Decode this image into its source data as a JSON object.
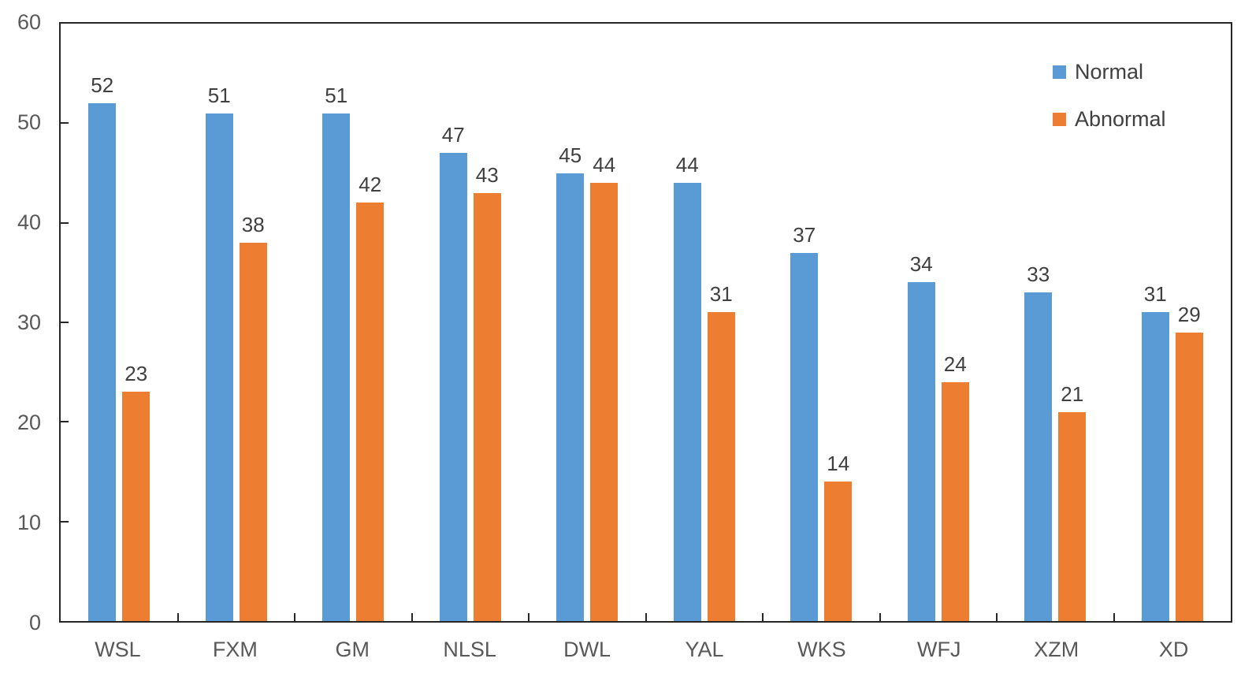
{
  "chart_data": {
    "type": "bar",
    "title": "",
    "xlabel": "",
    "ylabel": "",
    "categories": [
      "WSL",
      "FXM",
      "GM",
      "NLSL",
      "DWL",
      "YAL",
      "WKS",
      "WFJ",
      "XZM",
      "XD"
    ],
    "series": [
      {
        "name": "Normal",
        "color": "#5B9BD5",
        "values": [
          52,
          51,
          51,
          47,
          45,
          44,
          37,
          34,
          33,
          31
        ]
      },
      {
        "name": "Abnormal",
        "color": "#ED7D31",
        "values": [
          23,
          38,
          42,
          43,
          44,
          31,
          14,
          24,
          21,
          29
        ]
      }
    ],
    "ylim": [
      0,
      60
    ],
    "yticks": [
      0,
      10,
      20,
      30,
      40,
      50,
      60
    ],
    "grid": false,
    "legend_position": "top-right",
    "data_labels": true
  },
  "colors": {
    "plot_border": "#262626",
    "axis_text": "#595959",
    "data_label_text": "#404040",
    "background": "#FFFFFF"
  }
}
